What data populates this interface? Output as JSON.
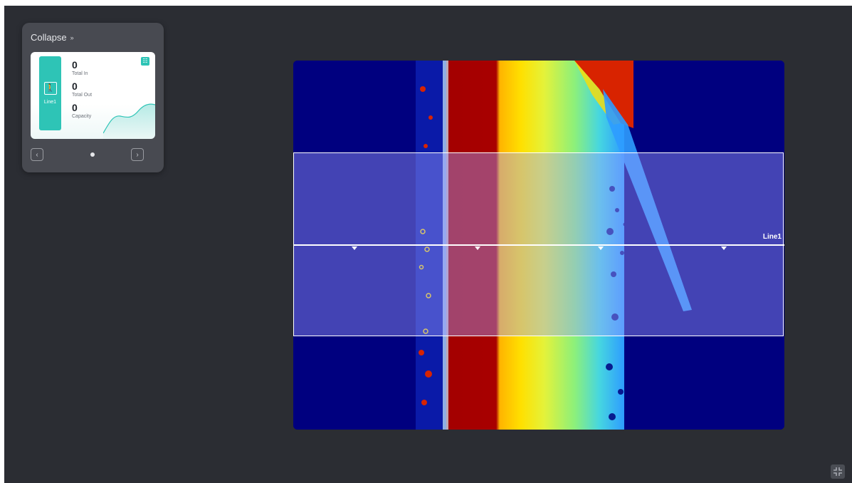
{
  "panel": {
    "collapse_label": "Collapse",
    "line_name": "Line1",
    "stats": [
      {
        "value": "0",
        "label": "Total In"
      },
      {
        "value": "0",
        "label": "Total Out"
      },
      {
        "value": "0",
        "label": "Capacity"
      }
    ],
    "accent_color": "#2ec4b6",
    "prev_icon": "chevron-left-icon",
    "next_icon": "chevron-right-icon"
  },
  "view": {
    "line_label": "Line1",
    "roi_fill": "#a0a0ff",
    "heatmap_background": "#00007f"
  }
}
